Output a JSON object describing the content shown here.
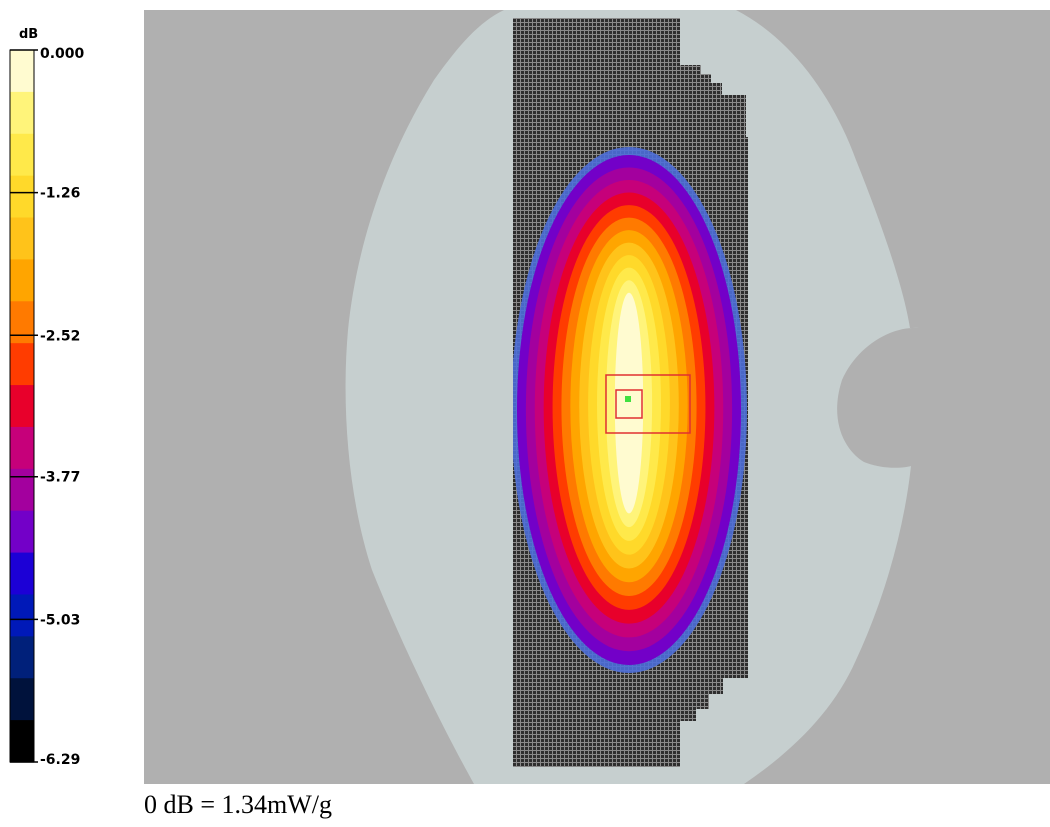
{
  "chart_data": {
    "type": "heatmap",
    "colorbar": {
      "unit": "dB",
      "tick_labels": [
        "0.000",
        "-1.26",
        "-2.52",
        "-3.77",
        "-5.03",
        "-6.29"
      ],
      "tick_values": [
        0.0,
        -1.26,
        -2.52,
        -3.77,
        -5.03,
        -6.29
      ],
      "range": [
        -6.29,
        0.0
      ],
      "colors": [
        "#fffbd0",
        "#fff47a",
        "#ffe94a",
        "#ffd92a",
        "#ffc31a",
        "#ffa500",
        "#ff7a00",
        "#ff3c00",
        "#e8002b",
        "#c6007a",
        "#a3009e",
        "#7300c8",
        "#1c00d6",
        "#0019b8",
        "#00207a",
        "#00123c",
        "#000000"
      ]
    },
    "background_colors": {
      "outside": "#b0b0b0",
      "phantom": "#c6cfcf",
      "scan_area": "#3a3a3a",
      "marker": "#e03030",
      "peak": "#40e040"
    }
  },
  "caption": "0 dB = 1.34mW/g"
}
